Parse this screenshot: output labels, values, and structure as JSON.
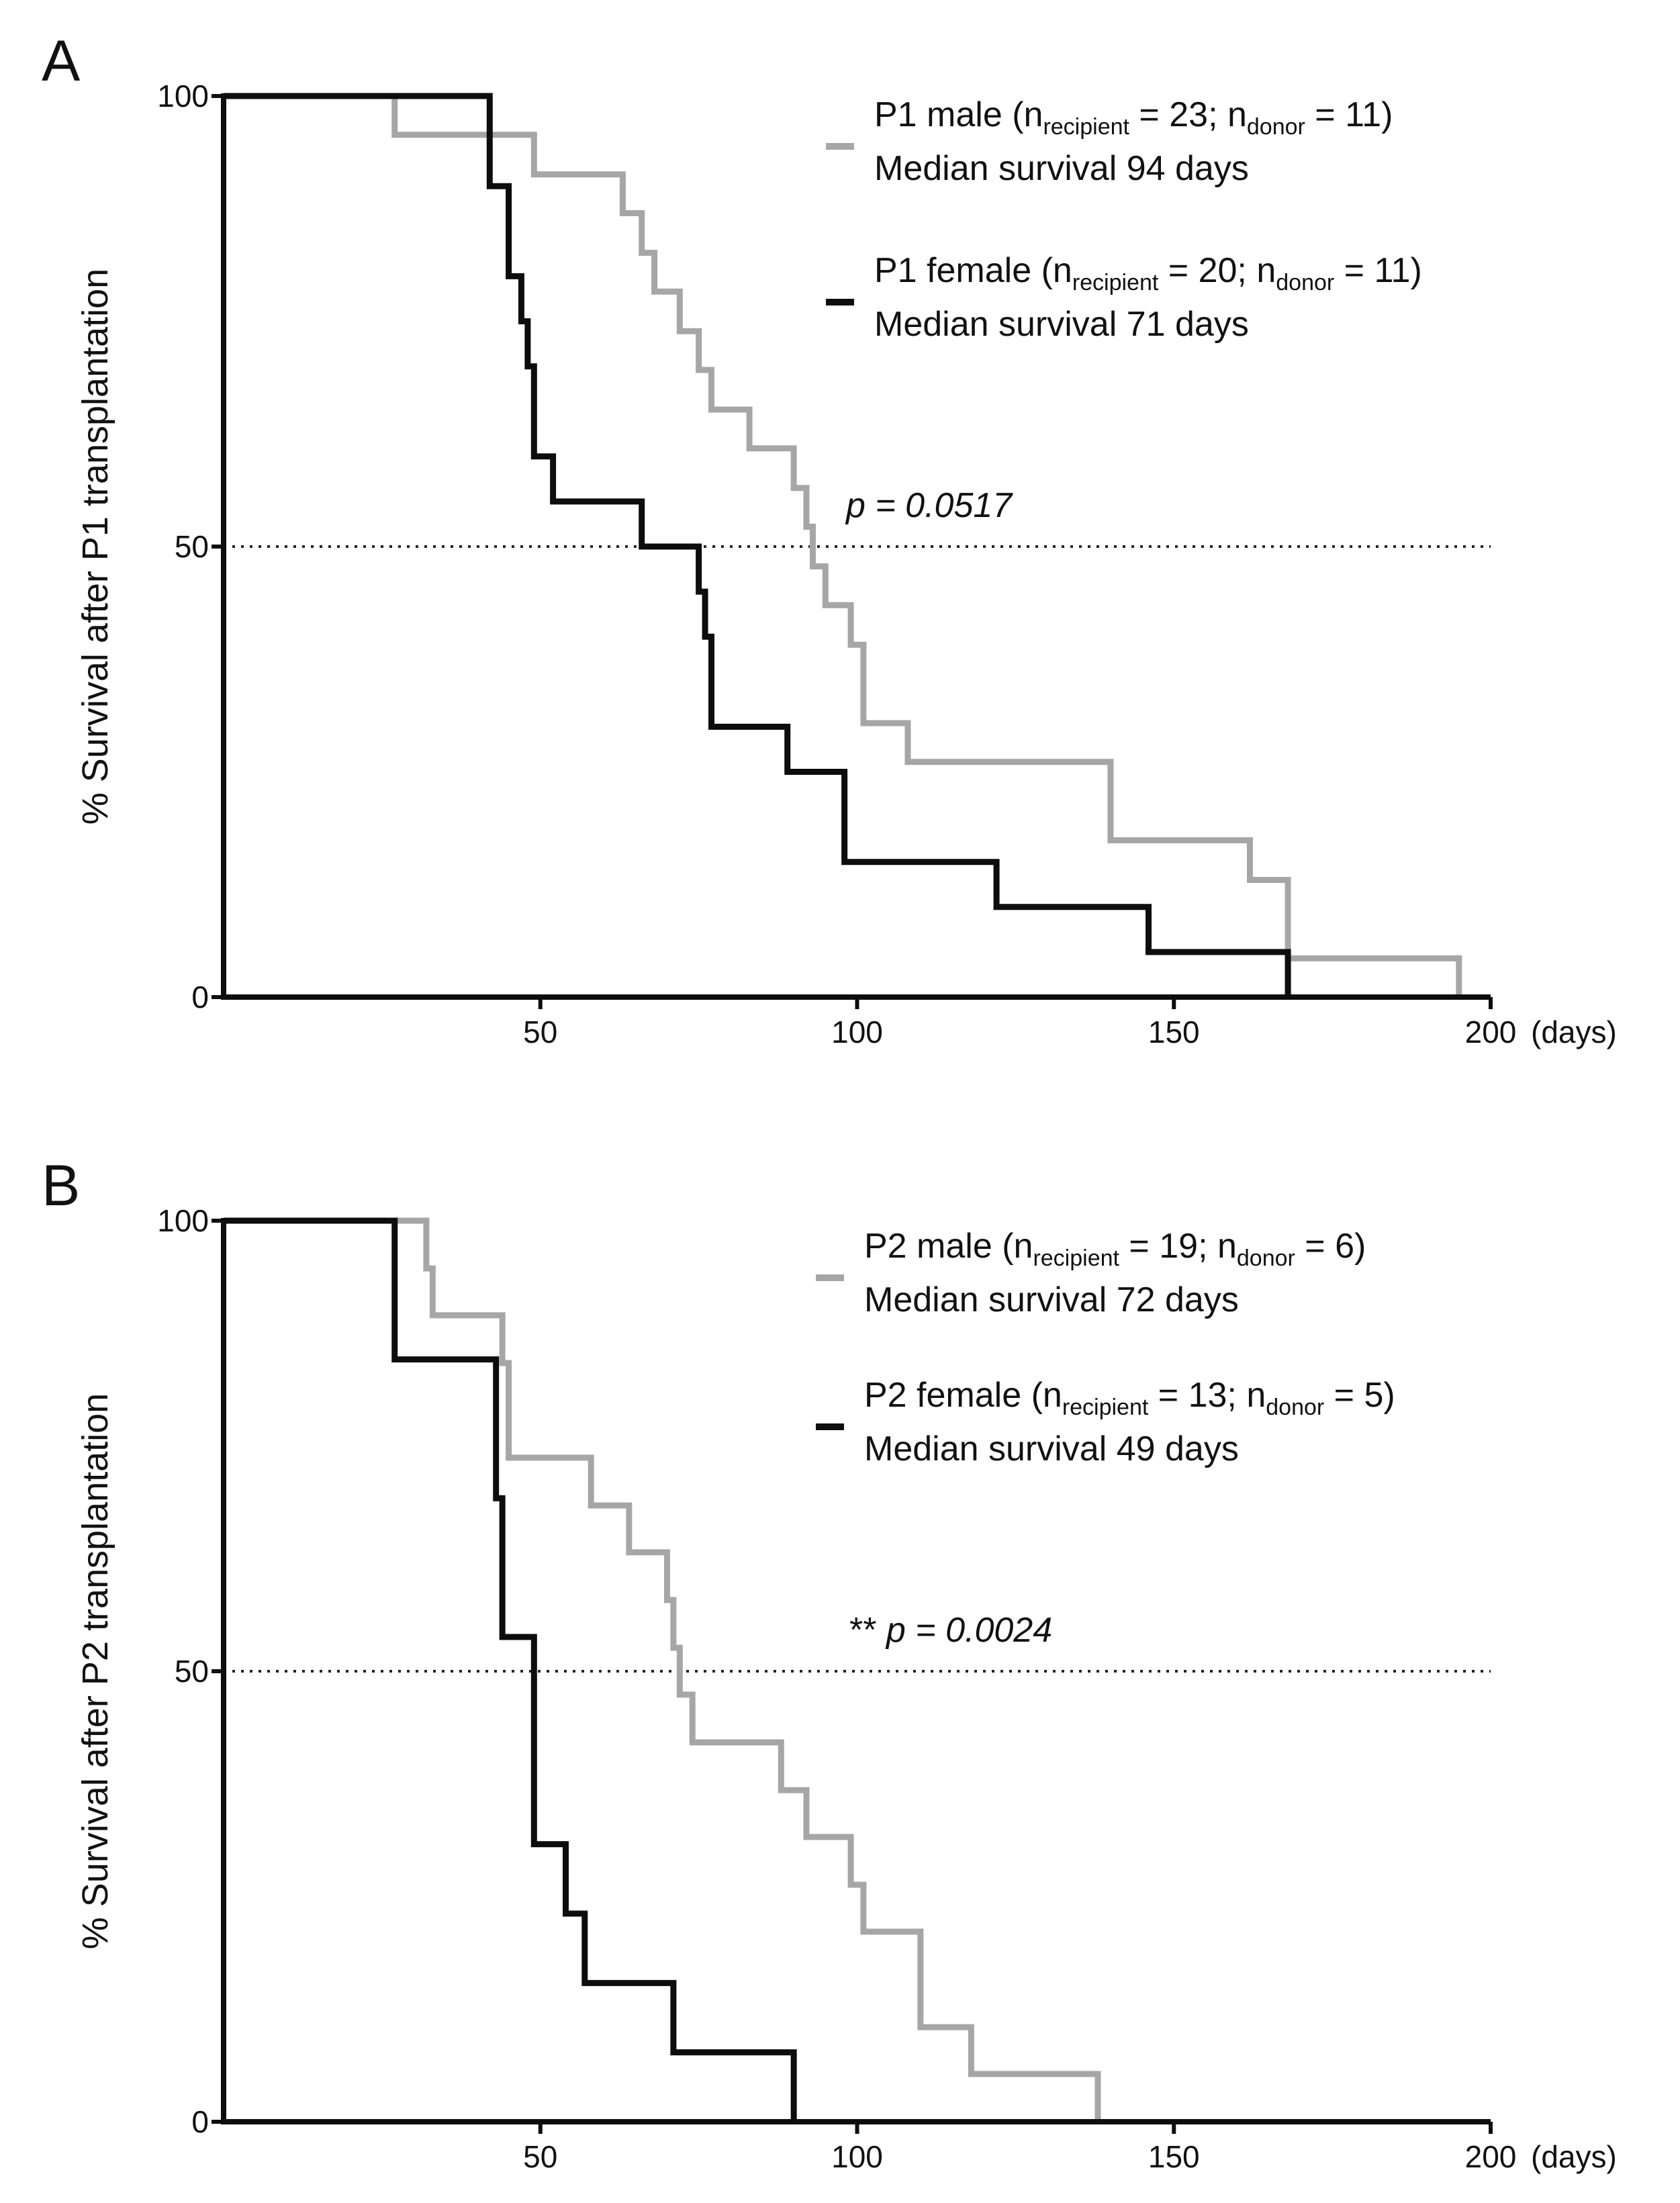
{
  "colors": {
    "male": "#a6a6a6",
    "female": "#0d0d0d",
    "axis": "#0d0d0d"
  },
  "chart_data": [
    {
      "type": "line",
      "step": true,
      "panel_letter": "A",
      "ylabel": "% Survival after P1 transplantation",
      "x_unit": "(days)",
      "xlim": [
        0,
        200
      ],
      "ylim": [
        0,
        100
      ],
      "x_ticks": [
        "50",
        "100",
        "150",
        "200"
      ],
      "y_ticks": [
        "0",
        "50",
        "100"
      ],
      "reference_line_y": 50,
      "p_value": {
        "stars": "",
        "italic": "p = 0.0517"
      },
      "series": [
        {
          "name": "P1 male",
          "color_key": "male",
          "legend": {
            "prefix": "P1 male (n",
            "sub1": "recipient",
            "mid": " = 23; n",
            "sub2": "donor",
            "suffix": " = 11)",
            "line2": "Median survival 94 days"
          },
          "x": [
            0,
            27,
            49,
            63,
            66,
            68,
            72,
            75,
            77,
            83,
            90,
            92,
            93,
            95,
            99,
            101,
            108,
            140,
            162,
            168,
            195
          ],
          "y": [
            100,
            95.7,
            91.3,
            87.0,
            82.6,
            78.3,
            73.9,
            69.6,
            65.2,
            60.9,
            56.5,
            52.2,
            47.8,
            43.5,
            39.1,
            30.4,
            26.1,
            17.4,
            13.0,
            4.3,
            0
          ]
        },
        {
          "name": "P1 female",
          "color_key": "female",
          "legend": {
            "prefix": "P1 female (n",
            "sub1": "recipient",
            "mid": " = 20; n",
            "sub2": "donor",
            "suffix": " = 11)",
            "line2": "Median survival 71 days"
          },
          "x": [
            0,
            42,
            45,
            47,
            48,
            49,
            52,
            66,
            75,
            76,
            77,
            89,
            98,
            122,
            146,
            168
          ],
          "y": [
            100,
            90,
            80,
            75,
            70,
            60,
            55,
            50,
            45,
            40,
            30,
            25,
            15,
            10,
            5,
            0
          ]
        }
      ]
    },
    {
      "type": "line",
      "step": true,
      "panel_letter": "B",
      "ylabel": "% Survival after P2 transplantation",
      "x_unit": "(days)",
      "xlim": [
        0,
        200
      ],
      "ylim": [
        0,
        100
      ],
      "x_ticks": [
        "50",
        "100",
        "150",
        "200"
      ],
      "y_ticks": [
        "0",
        "50",
        "100"
      ],
      "reference_line_y": 50,
      "p_value": {
        "stars": "** ",
        "italic": "p = 0.0024"
      },
      "series": [
        {
          "name": "P2 male",
          "color_key": "male",
          "legend": {
            "prefix": "P2 male (n",
            "sub1": "recipient",
            "mid": " = 19; n",
            "sub2": "donor",
            "suffix": " = 6)",
            "line2": "Median survival 72 days"
          },
          "x": [
            0,
            32,
            33,
            44,
            45,
            58,
            64,
            70,
            71,
            72,
            74,
            78,
            88,
            92,
            99,
            101,
            110,
            118,
            138
          ],
          "y": [
            100,
            94.7,
            89.5,
            84.2,
            73.7,
            68.4,
            63.2,
            57.9,
            52.6,
            47.4,
            42.1,
            42.1,
            36.8,
            31.6,
            26.3,
            21.1,
            10.5,
            5.3,
            0
          ]
        },
        {
          "name": "P2 female",
          "color_key": "female",
          "legend": {
            "prefix": "P2 female (n",
            "sub1": "recipient",
            "mid": " = 13; n",
            "sub2": "donor",
            "suffix": " = 5)",
            "line2": "Median survival 49 days"
          },
          "x": [
            0,
            27,
            43,
            44,
            49,
            54,
            57,
            71,
            90
          ],
          "y": [
            100,
            84.6,
            69.2,
            53.8,
            30.8,
            23.1,
            15.4,
            7.7,
            0
          ]
        }
      ]
    }
  ]
}
